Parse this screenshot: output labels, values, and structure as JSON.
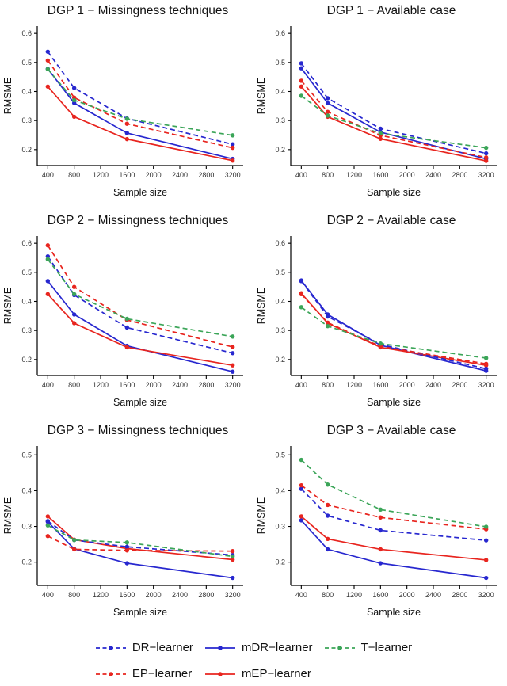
{
  "figure": {
    "xlabel": "Sample size",
    "ylabel": "RMSME",
    "x_ticks": [
      400,
      800,
      1200,
      1600,
      2000,
      2400,
      2800,
      3200
    ]
  },
  "colors": {
    "blue": "#2727cf",
    "red": "#e8251f",
    "green": "#3ba558",
    "axis": "#000000",
    "tick_text": "#333333"
  },
  "legend": {
    "items": [
      {
        "label": "DR−learner",
        "color": "#2727cf",
        "dashed": true
      },
      {
        "label": "mDR−learner",
        "color": "#2727cf",
        "dashed": false
      },
      {
        "label": "T−learner",
        "color": "#3ba558",
        "dashed": true
      },
      {
        "label": "EP−learner",
        "color": "#e8251f",
        "dashed": true
      },
      {
        "label": "mEP−learner",
        "color": "#e8251f",
        "dashed": false
      }
    ]
  },
  "chart_data": [
    {
      "type": "line",
      "title": "DGP 1 − Missingness techniques",
      "xlabel": "Sample size",
      "ylabel": "RMSME",
      "x": [
        400,
        800,
        1600,
        3200
      ],
      "xticks": [
        400,
        800,
        1200,
        1600,
        2000,
        2400,
        2800,
        3200
      ],
      "yticks": [
        0.2,
        0.3,
        0.4,
        0.5,
        0.6
      ],
      "ylim": [
        0.145,
        0.625
      ],
      "xlim": [
        240,
        3360
      ],
      "series": [
        {
          "name": "mDR-learner",
          "color": "#2727cf",
          "dashed": false,
          "values": [
            0.478,
            0.36,
            0.257,
            0.168
          ]
        },
        {
          "name": "mEP-learner",
          "color": "#e8251f",
          "dashed": false,
          "values": [
            0.417,
            0.313,
            0.236,
            0.162
          ]
        },
        {
          "name": "DR-learner",
          "color": "#2727cf",
          "dashed": true,
          "values": [
            0.537,
            0.412,
            0.307,
            0.218
          ]
        },
        {
          "name": "EP-learner",
          "color": "#e8251f",
          "dashed": true,
          "values": [
            0.507,
            0.379,
            0.289,
            0.206
          ]
        },
        {
          "name": "T-learner",
          "color": "#3ba558",
          "dashed": true,
          "values": [
            0.477,
            0.37,
            0.306,
            0.249
          ]
        }
      ]
    },
    {
      "type": "line",
      "title": "DGP 1 − Available case",
      "xlabel": "Sample size",
      "ylabel": "RMSME",
      "x": [
        400,
        800,
        1600,
        3200
      ],
      "xticks": [
        400,
        800,
        1200,
        1600,
        2000,
        2400,
        2800,
        3200
      ],
      "yticks": [
        0.2,
        0.3,
        0.4,
        0.5,
        0.6
      ],
      "ylim": [
        0.145,
        0.625
      ],
      "xlim": [
        240,
        3360
      ],
      "series": [
        {
          "name": "mDR-learner",
          "color": "#2727cf",
          "dashed": false,
          "values": [
            0.48,
            0.36,
            0.26,
            0.168
          ]
        },
        {
          "name": "mEP-learner",
          "color": "#e8251f",
          "dashed": false,
          "values": [
            0.417,
            0.313,
            0.237,
            0.161
          ]
        },
        {
          "name": "DR-learner",
          "color": "#2727cf",
          "dashed": true,
          "values": [
            0.497,
            0.377,
            0.272,
            0.187
          ]
        },
        {
          "name": "EP-learner",
          "color": "#e8251f",
          "dashed": true,
          "values": [
            0.437,
            0.33,
            0.249,
            0.173
          ]
        },
        {
          "name": "T-learner",
          "color": "#3ba558",
          "dashed": true,
          "values": [
            0.385,
            0.317,
            0.256,
            0.206
          ]
        }
      ]
    },
    {
      "type": "line",
      "title": "DGP 2 − Missingness techniques",
      "xlabel": "Sample size",
      "ylabel": "RMSME",
      "x": [
        400,
        800,
        1600,
        3200
      ],
      "xticks": [
        400,
        800,
        1200,
        1600,
        2000,
        2400,
        2800,
        3200
      ],
      "yticks": [
        0.2,
        0.3,
        0.4,
        0.5,
        0.6
      ],
      "ylim": [
        0.145,
        0.625
      ],
      "xlim": [
        240,
        3360
      ],
      "series": [
        {
          "name": "mDR-learner",
          "color": "#2727cf",
          "dashed": false,
          "values": [
            0.47,
            0.355,
            0.247,
            0.158
          ]
        },
        {
          "name": "mEP-learner",
          "color": "#e8251f",
          "dashed": false,
          "values": [
            0.425,
            0.325,
            0.242,
            0.18
          ]
        },
        {
          "name": "DR-learner",
          "color": "#2727cf",
          "dashed": true,
          "values": [
            0.555,
            0.422,
            0.31,
            0.222
          ]
        },
        {
          "name": "EP-learner",
          "color": "#e8251f",
          "dashed": true,
          "values": [
            0.593,
            0.45,
            0.336,
            0.243
          ]
        },
        {
          "name": "T-learner",
          "color": "#3ba558",
          "dashed": true,
          "values": [
            0.545,
            0.425,
            0.34,
            0.279
          ]
        }
      ]
    },
    {
      "type": "line",
      "title": "DGP 2 − Available case",
      "xlabel": "Sample size",
      "ylabel": "RMSME",
      "x": [
        400,
        800,
        1600,
        3200
      ],
      "xticks": [
        400,
        800,
        1200,
        1600,
        2000,
        2400,
        2800,
        3200
      ],
      "yticks": [
        0.2,
        0.3,
        0.4,
        0.5,
        0.6
      ],
      "ylim": [
        0.145,
        0.625
      ],
      "xlim": [
        240,
        3360
      ],
      "series": [
        {
          "name": "mDR-learner",
          "color": "#2727cf",
          "dashed": false,
          "values": [
            0.472,
            0.355,
            0.249,
            0.161
          ]
        },
        {
          "name": "mEP-learner",
          "color": "#e8251f",
          "dashed": false,
          "values": [
            0.428,
            0.325,
            0.242,
            0.18
          ]
        },
        {
          "name": "DR-learner",
          "color": "#2727cf",
          "dashed": true,
          "values": [
            0.47,
            0.348,
            0.252,
            0.168
          ]
        },
        {
          "name": "EP-learner",
          "color": "#e8251f",
          "dashed": true,
          "values": [
            0.425,
            0.327,
            0.245,
            0.185
          ]
        },
        {
          "name": "T-learner",
          "color": "#3ba558",
          "dashed": true,
          "values": [
            0.38,
            0.315,
            0.255,
            0.205
          ]
        }
      ]
    },
    {
      "type": "line",
      "title": "DGP 3 − Missingness techniques",
      "xlabel": "Sample size",
      "ylabel": "RMSME",
      "x": [
        400,
        800,
        1600,
        3200
      ],
      "xticks": [
        400,
        800,
        1200,
        1600,
        2000,
        2400,
        2800,
        3200
      ],
      "yticks": [
        0.2,
        0.3,
        0.4,
        0.5
      ],
      "ylim": [
        0.135,
        0.525
      ],
      "xlim": [
        240,
        3360
      ],
      "series": [
        {
          "name": "mDR-learner",
          "color": "#2727cf",
          "dashed": false,
          "values": [
            0.313,
            0.237,
            0.197,
            0.156
          ]
        },
        {
          "name": "mEP-learner",
          "color": "#e8251f",
          "dashed": false,
          "values": [
            0.328,
            0.263,
            0.238,
            0.207
          ]
        },
        {
          "name": "DR-learner",
          "color": "#2727cf",
          "dashed": true,
          "values": [
            0.315,
            0.262,
            0.243,
            0.22
          ]
        },
        {
          "name": "EP-learner",
          "color": "#e8251f",
          "dashed": true,
          "values": [
            0.273,
            0.236,
            0.233,
            0.231
          ]
        },
        {
          "name": "T-learner",
          "color": "#3ba558",
          "dashed": true,
          "values": [
            0.303,
            0.262,
            0.255,
            0.216
          ]
        }
      ]
    },
    {
      "type": "line",
      "title": "DGP 3 − Available case",
      "xlabel": "Sample size",
      "ylabel": "RMSME",
      "x": [
        400,
        800,
        1600,
        3200
      ],
      "xticks": [
        400,
        800,
        1200,
        1600,
        2000,
        2400,
        2800,
        3200
      ],
      "yticks": [
        0.2,
        0.3,
        0.4,
        0.5
      ],
      "ylim": [
        0.135,
        0.525
      ],
      "xlim": [
        240,
        3360
      ],
      "series": [
        {
          "name": "mDR-learner",
          "color": "#2727cf",
          "dashed": false,
          "values": [
            0.317,
            0.236,
            0.197,
            0.156
          ]
        },
        {
          "name": "mEP-learner",
          "color": "#e8251f",
          "dashed": false,
          "values": [
            0.328,
            0.265,
            0.236,
            0.206
          ]
        },
        {
          "name": "DR-learner",
          "color": "#2727cf",
          "dashed": true,
          "values": [
            0.405,
            0.33,
            0.289,
            0.261
          ]
        },
        {
          "name": "EP-learner",
          "color": "#e8251f",
          "dashed": true,
          "values": [
            0.415,
            0.36,
            0.325,
            0.292
          ]
        },
        {
          "name": "T-learner",
          "color": "#3ba558",
          "dashed": true,
          "values": [
            0.486,
            0.417,
            0.347,
            0.299
          ]
        }
      ]
    }
  ]
}
